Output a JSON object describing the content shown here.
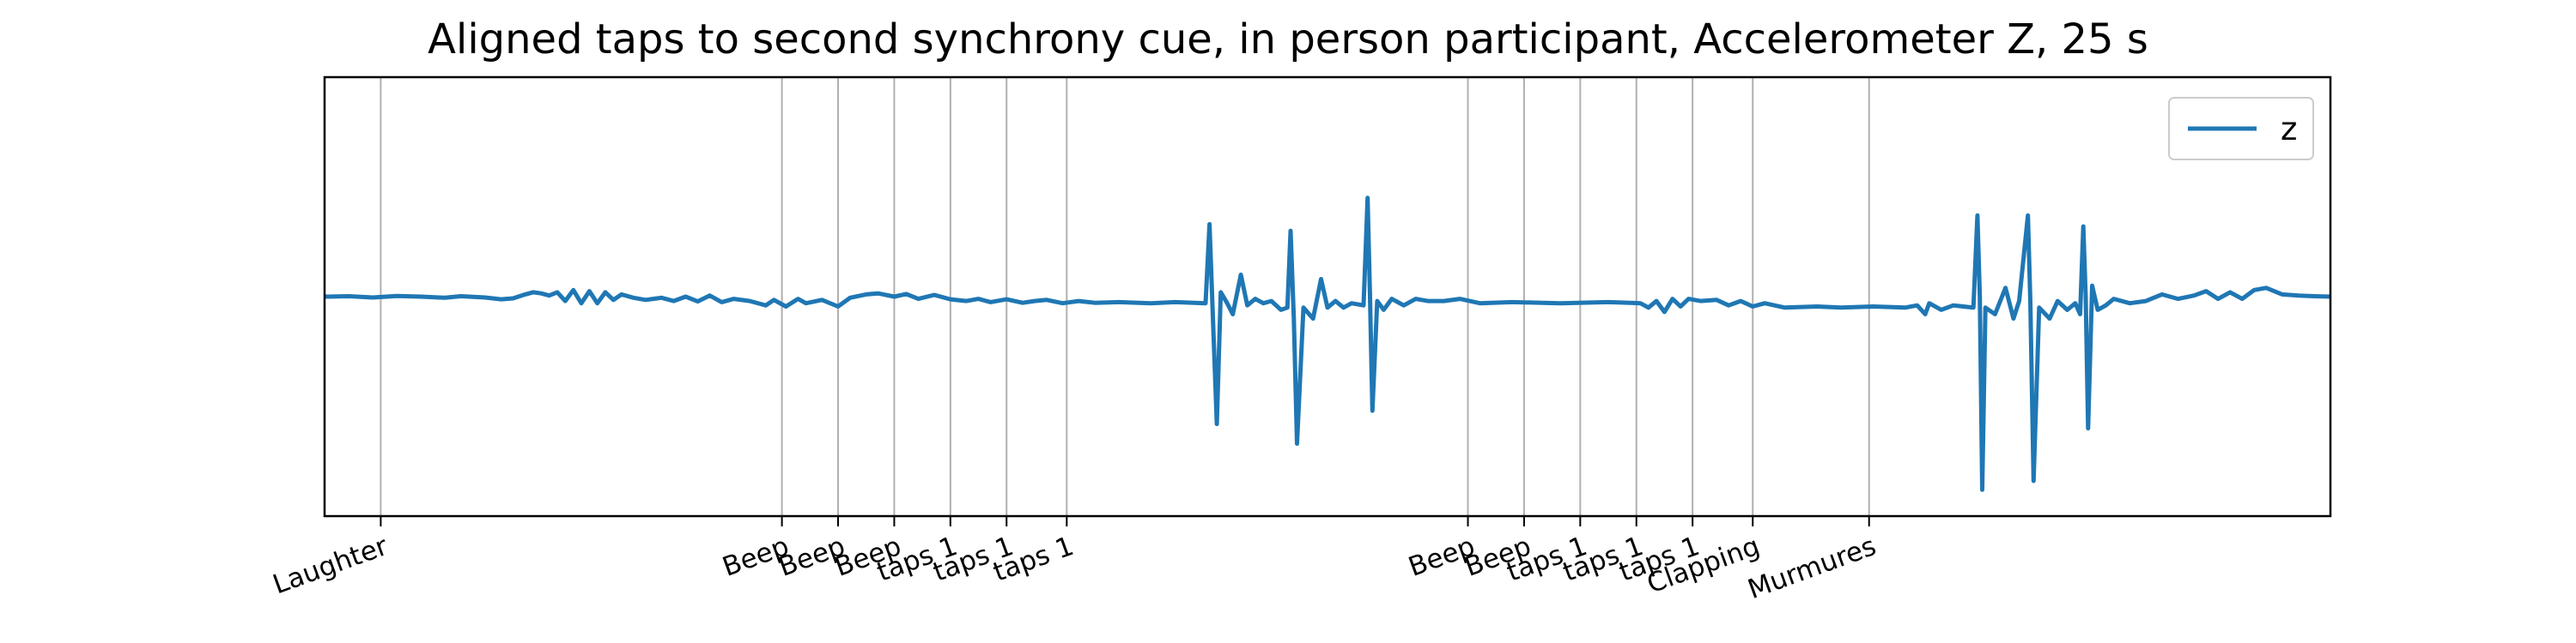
{
  "chart_data": {
    "type": "line",
    "title": "Aligned taps to second synchrony cue, in person participant, Accelerometer Z, 25 s",
    "xlabel": "",
    "ylabel": "",
    "xlim": [
      0,
      25
    ],
    "ylim": [
      -1.0,
      1.0
    ],
    "grid": "vertical at event ticks",
    "legend_position": "top-right",
    "series": [
      {
        "name": "z",
        "color": "#1f77b4",
        "points": [
          [
            0.0,
            0.0
          ],
          [
            0.3,
            0.002
          ],
          [
            0.6,
            -0.004
          ],
          [
            0.9,
            0.003
          ],
          [
            1.2,
            0.0
          ],
          [
            1.5,
            -0.005
          ],
          [
            1.7,
            0.002
          ],
          [
            2.0,
            -0.004
          ],
          [
            2.2,
            -0.012
          ],
          [
            2.35,
            -0.008
          ],
          [
            2.5,
            0.01
          ],
          [
            2.6,
            0.02
          ],
          [
            2.7,
            0.015
          ],
          [
            2.8,
            0.005
          ],
          [
            2.9,
            0.02
          ],
          [
            3.0,
            -0.02
          ],
          [
            3.1,
            0.03
          ],
          [
            3.2,
            -0.03
          ],
          [
            3.3,
            0.025
          ],
          [
            3.4,
            -0.03
          ],
          [
            3.5,
            0.02
          ],
          [
            3.6,
            -0.015
          ],
          [
            3.7,
            0.01
          ],
          [
            3.85,
            -0.005
          ],
          [
            4.0,
            -0.015
          ],
          [
            4.2,
            -0.005
          ],
          [
            4.35,
            -0.02
          ],
          [
            4.5,
            0.0
          ],
          [
            4.65,
            -0.022
          ],
          [
            4.8,
            0.005
          ],
          [
            4.95,
            -0.025
          ],
          [
            5.1,
            -0.01
          ],
          [
            5.3,
            -0.02
          ],
          [
            5.5,
            -0.04
          ],
          [
            5.6,
            -0.015
          ],
          [
            5.75,
            -0.045
          ],
          [
            5.9,
            -0.01
          ],
          [
            6.0,
            -0.03
          ],
          [
            6.2,
            -0.015
          ],
          [
            6.4,
            -0.045
          ],
          [
            6.55,
            -0.005
          ],
          [
            6.75,
            0.01
          ],
          [
            6.9,
            0.015
          ],
          [
            7.1,
            0.0
          ],
          [
            7.25,
            0.012
          ],
          [
            7.4,
            -0.01
          ],
          [
            7.6,
            0.008
          ],
          [
            7.8,
            -0.012
          ],
          [
            8.0,
            -0.02
          ],
          [
            8.15,
            -0.01
          ],
          [
            8.3,
            -0.025
          ],
          [
            8.5,
            -0.012
          ],
          [
            8.7,
            -0.028
          ],
          [
            8.85,
            -0.02
          ],
          [
            9.0,
            -0.015
          ],
          [
            9.2,
            -0.03
          ],
          [
            9.4,
            -0.02
          ],
          [
            9.6,
            -0.028
          ],
          [
            9.9,
            -0.025
          ],
          [
            10.3,
            -0.03
          ],
          [
            10.6,
            -0.025
          ],
          [
            10.98,
            -0.03
          ],
          [
            11.03,
            0.33
          ],
          [
            11.07,
            -0.08
          ],
          [
            11.12,
            -0.58
          ],
          [
            11.17,
            0.02
          ],
          [
            11.25,
            -0.03
          ],
          [
            11.32,
            -0.08
          ],
          [
            11.42,
            0.1
          ],
          [
            11.5,
            -0.04
          ],
          [
            11.6,
            -0.01
          ],
          [
            11.7,
            -0.03
          ],
          [
            11.8,
            -0.02
          ],
          [
            11.92,
            -0.06
          ],
          [
            12.0,
            -0.05
          ],
          [
            12.04,
            0.3
          ],
          [
            12.08,
            -0.1
          ],
          [
            12.12,
            -0.67
          ],
          [
            12.2,
            -0.05
          ],
          [
            12.32,
            -0.1
          ],
          [
            12.42,
            0.08
          ],
          [
            12.5,
            -0.05
          ],
          [
            12.6,
            -0.02
          ],
          [
            12.7,
            -0.05
          ],
          [
            12.8,
            -0.03
          ],
          [
            12.95,
            -0.04
          ],
          [
            13.0,
            0.45
          ],
          [
            13.03,
            0.0
          ],
          [
            13.06,
            -0.52
          ],
          [
            13.12,
            -0.02
          ],
          [
            13.2,
            -0.06
          ],
          [
            13.3,
            -0.01
          ],
          [
            13.45,
            -0.04
          ],
          [
            13.6,
            -0.01
          ],
          [
            13.75,
            -0.02
          ],
          [
            13.95,
            -0.02
          ],
          [
            14.15,
            -0.01
          ],
          [
            14.4,
            -0.03
          ],
          [
            14.8,
            -0.025
          ],
          [
            15.4,
            -0.03
          ],
          [
            16.0,
            -0.025
          ],
          [
            16.4,
            -0.03
          ],
          [
            16.5,
            -0.05
          ],
          [
            16.6,
            -0.02
          ],
          [
            16.7,
            -0.07
          ],
          [
            16.8,
            -0.01
          ],
          [
            16.9,
            -0.045
          ],
          [
            17.0,
            -0.01
          ],
          [
            17.15,
            -0.02
          ],
          [
            17.35,
            -0.015
          ],
          [
            17.5,
            -0.04
          ],
          [
            17.65,
            -0.02
          ],
          [
            17.8,
            -0.045
          ],
          [
            17.95,
            -0.03
          ],
          [
            18.2,
            -0.05
          ],
          [
            18.6,
            -0.045
          ],
          [
            18.9,
            -0.05
          ],
          [
            19.3,
            -0.045
          ],
          [
            19.7,
            -0.05
          ],
          [
            19.85,
            -0.04
          ],
          [
            19.95,
            -0.08
          ],
          [
            20.0,
            -0.03
          ],
          [
            20.15,
            -0.06
          ],
          [
            20.3,
            -0.04
          ],
          [
            20.55,
            -0.05
          ],
          [
            20.6,
            0.37
          ],
          [
            20.63,
            0.0
          ],
          [
            20.66,
            -0.88
          ],
          [
            20.7,
            -0.05
          ],
          [
            20.82,
            -0.08
          ],
          [
            20.95,
            0.04
          ],
          [
            21.05,
            -0.1
          ],
          [
            21.12,
            -0.02
          ],
          [
            21.23,
            0.37
          ],
          [
            21.26,
            -0.02
          ],
          [
            21.3,
            -0.84
          ],
          [
            21.37,
            -0.05
          ],
          [
            21.5,
            -0.1
          ],
          [
            21.6,
            -0.02
          ],
          [
            21.72,
            -0.06
          ],
          [
            21.82,
            -0.03
          ],
          [
            21.88,
            -0.08
          ],
          [
            21.92,
            0.32
          ],
          [
            21.95,
            0.0
          ],
          [
            21.98,
            -0.6
          ],
          [
            22.03,
            0.05
          ],
          [
            22.1,
            -0.06
          ],
          [
            22.2,
            -0.04
          ],
          [
            22.3,
            -0.01
          ],
          [
            22.5,
            -0.03
          ],
          [
            22.7,
            -0.02
          ],
          [
            22.9,
            0.01
          ],
          [
            23.1,
            -0.01
          ],
          [
            23.3,
            0.005
          ],
          [
            23.45,
            0.025
          ],
          [
            23.6,
            -0.01
          ],
          [
            23.75,
            0.02
          ],
          [
            23.9,
            -0.01
          ],
          [
            24.05,
            0.03
          ],
          [
            24.2,
            0.04
          ],
          [
            24.4,
            0.01
          ],
          [
            24.6,
            0.005
          ],
          [
            24.8,
            0.002
          ],
          [
            25.0,
            0.0
          ]
        ]
      }
    ],
    "events": [
      {
        "x": 0.7,
        "label": "Laughter"
      },
      {
        "x": 5.7,
        "label": "Beep"
      },
      {
        "x": 6.4,
        "label": "Beep"
      },
      {
        "x": 7.1,
        "label": "Beep"
      },
      {
        "x": 7.8,
        "label": "taps 1"
      },
      {
        "x": 8.5,
        "label": "taps 1"
      },
      {
        "x": 9.25,
        "label": "taps 1"
      },
      {
        "x": 14.25,
        "label": "Beep"
      },
      {
        "x": 14.95,
        "label": "Beep"
      },
      {
        "x": 15.65,
        "label": "taps 1"
      },
      {
        "x": 16.35,
        "label": "taps 1"
      },
      {
        "x": 17.05,
        "label": "taps 1"
      },
      {
        "x": 17.8,
        "label": "Clapping"
      },
      {
        "x": 19.25,
        "label": "Murmures"
      }
    ]
  }
}
